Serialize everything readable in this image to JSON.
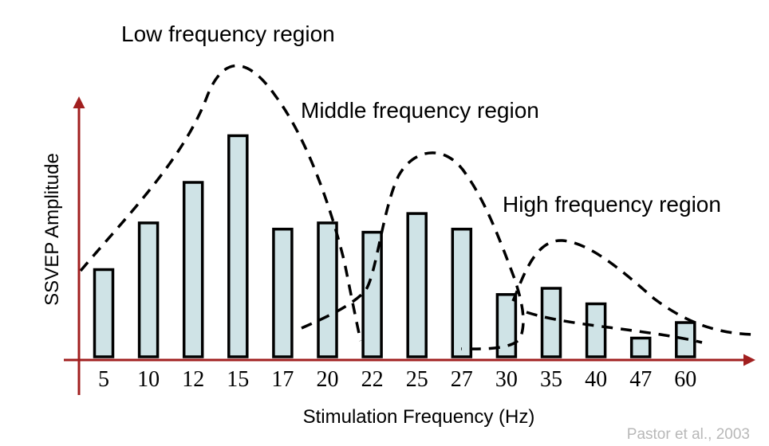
{
  "chart_data": {
    "type": "bar",
    "xlabel": "Stimulation Frequency (Hz)",
    "ylabel": "SSVEP Amplitude",
    "categories": [
      "5",
      "10",
      "12",
      "15",
      "17",
      "20",
      "22",
      "25",
      "27",
      "30",
      "35",
      "40",
      "47",
      "60"
    ],
    "values": [
      28,
      43,
      56,
      71,
      41,
      43,
      40,
      46,
      41,
      20,
      22,
      17,
      6,
      11
    ],
    "ylim": [
      0,
      100
    ],
    "grid": false,
    "annotations": [
      "Low frequency region",
      "Middle frequency region",
      "High frequency region"
    ],
    "source": "Pastor et al., 2003",
    "colors": {
      "bar_fill": "#cfe3e6",
      "bar_stroke": "#000000",
      "axis": "#a11f1f",
      "curve": "#000000"
    }
  }
}
